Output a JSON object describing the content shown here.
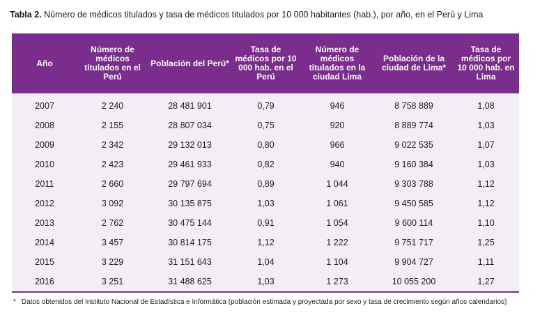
{
  "caption": {
    "label": "Tabla 2.",
    "text": "Número de médicos titulados y tasa de médicos titulados por 10 000 habitantes (hab.), por año, en el Perú y Lima"
  },
  "table": {
    "headers": [
      "Año",
      "Número de médicos titulados en el Perú",
      "Población del Perú*",
      "Tasa de médicos por 10 000 hab. en el Perú",
      "Número de médicos titulados en la ciudad Lima",
      "Población de la ciudad de Lima*",
      "Tasa de médicos por 10 000 hab. en Lima"
    ],
    "rows": [
      [
        "2007",
        "2 240",
        "28 481 901",
        "0,79",
        "946",
        "8 758 889",
        "1,08"
      ],
      [
        "2008",
        "2 155",
        "28 807 034",
        "0,75",
        "920",
        "8 889 774",
        "1,03"
      ],
      [
        "2009",
        "2 342",
        "29 132 013",
        "0,80",
        "966",
        "9 022 535",
        "1,07"
      ],
      [
        "2010",
        "2 423",
        "29 461 933",
        "0,82",
        "940",
        "9 160 384",
        "1,03"
      ],
      [
        "2011",
        "2 660",
        "29 797 694",
        "0,89",
        "1 044",
        "9 303 788",
        "1,12"
      ],
      [
        "2012",
        "3 092",
        "30 135 875",
        "1,03",
        "1 061",
        "9 450 585",
        "1,12"
      ],
      [
        "2013",
        "2 762",
        "30 475 144",
        "0,91",
        "1 054",
        "9 600 114",
        "1,10"
      ],
      [
        "2014",
        "3 457",
        "30 814 175",
        "1,12",
        "1 222",
        "9 751 717",
        "1,25"
      ],
      [
        "2015",
        "3 229",
        "31 151 643",
        "1,04",
        "1 104",
        "9 904 727",
        "1,11"
      ],
      [
        "2016",
        "3 251",
        "31 488 625",
        "1,03",
        "1 273",
        "10 055 200",
        "1,27"
      ]
    ]
  },
  "footnote": {
    "mark": "*",
    "text": "Datos obtenidos del  Instituto Nacional de Estadística e Informática (población estimada y proyectada por sexo y tasa de crecimiento según años calendarios)"
  },
  "colors": {
    "header_bg": "#7b2d8e",
    "row_bg": "#f3eef6"
  }
}
